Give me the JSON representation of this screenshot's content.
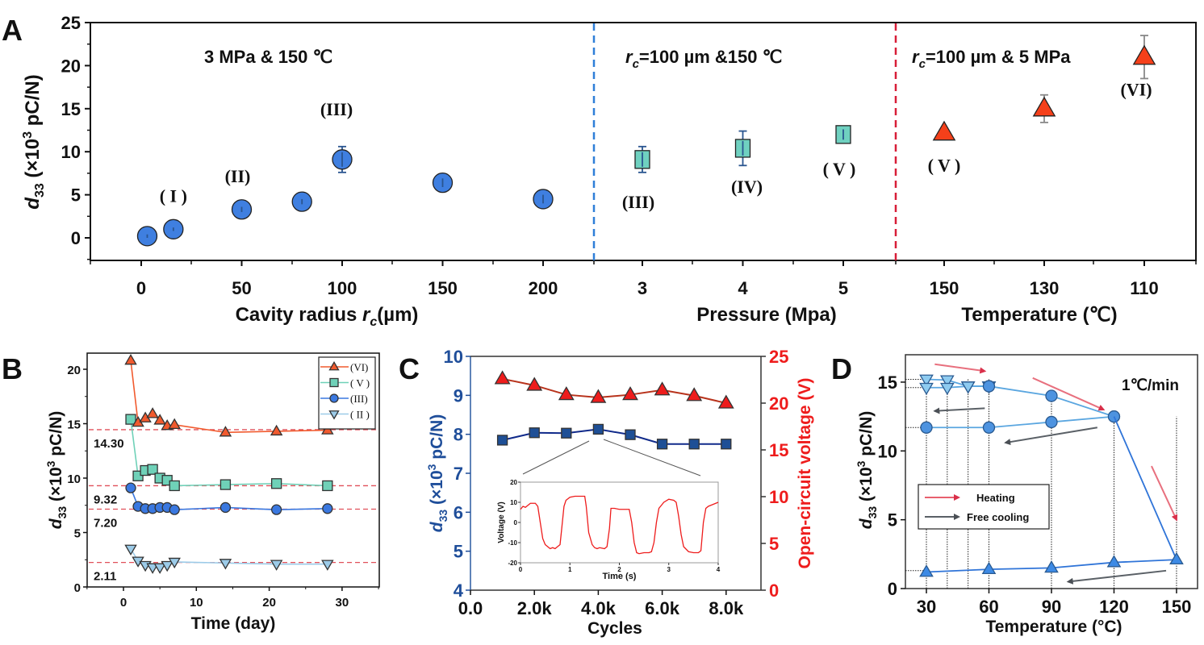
{
  "figure": {
    "panel_labels": [
      "A",
      "B",
      "C",
      "D"
    ]
  },
  "chart_data": [
    {
      "panel": "A",
      "type": "scatter",
      "ylabel_main": "d",
      "ylabel_sub": "33",
      "ylabel_rest": " (×10",
      "ylabel_sup": "3",
      "ylabel_unit": " pC/N)",
      "ylim": [
        -2.5,
        25
      ],
      "yticks": [
        0,
        5,
        10,
        15,
        20,
        25
      ],
      "segments": [
        {
          "name": "cavity",
          "xlabel": "Cavity radius r_c(µm)",
          "xlabel_pre": "Cavity radius ",
          "xlabel_var": "r",
          "xlabel_sub": "c",
          "xlabel_post": "(µm)",
          "condition_pre": "3 MPa & 150 ℃",
          "condition_var": "",
          "condition_sub": "",
          "xticks": [
            "0",
            "50",
            "100",
            "150",
            "200"
          ],
          "xtick_values": [
            0,
            50,
            100,
            150,
            200
          ],
          "marker": "circle",
          "color": "#3f7fe0",
          "points": [
            {
              "x": 3,
              "y": 0.2,
              "err": 0.2,
              "label": ""
            },
            {
              "x": 16,
              "y": 1.0,
              "err": 0.2,
              "label": "( I )"
            },
            {
              "x": 50,
              "y": 3.3,
              "err": 0.3,
              "label": "(II)"
            },
            {
              "x": 80,
              "y": 4.2,
              "err": 0.3,
              "label": ""
            },
            {
              "x": 100,
              "y": 9.1,
              "err": 1.5,
              "label": "(III)"
            },
            {
              "x": 150,
              "y": 6.4,
              "err": 0.5,
              "label": ""
            },
            {
              "x": 200,
              "y": 4.5,
              "err": 0.5,
              "label": ""
            }
          ]
        },
        {
          "name": "pressure",
          "xlabel": "Pressure (Mpa)",
          "condition_var": "r",
          "condition_sub": "c",
          "condition_post": "=100 µm &150 ℃",
          "xticks": [
            "3",
            "4",
            "5"
          ],
          "xtick_values": [
            3,
            4,
            5
          ],
          "marker": "square",
          "color": "#6fd1c0",
          "points": [
            {
              "x": 3,
              "y": 9.1,
              "err": 1.5,
              "label": "(III)"
            },
            {
              "x": 4,
              "y": 10.4,
              "err": 2.0,
              "label": "(IV)"
            },
            {
              "x": 5,
              "y": 12.0,
              "err": 0.6,
              "label": "( V )"
            }
          ]
        },
        {
          "name": "temperature",
          "xlabel": "Temperature (℃)",
          "condition_var": "r",
          "condition_sub": "c",
          "condition_post": "=100 µm & 5 MPa",
          "xticks": [
            "150",
            "130",
            "110"
          ],
          "xtick_values": [
            150,
            130,
            110
          ],
          "marker": "triangle",
          "color": "#f5401a",
          "points": [
            {
              "x": 150,
              "y": 12.2,
              "err": 0.2,
              "label": "( V )"
            },
            {
              "x": 130,
              "y": 15.0,
              "err": 1.6,
              "label": ""
            },
            {
              "x": 110,
              "y": 21.0,
              "err": 2.5,
              "label": "(VI)"
            }
          ]
        }
      ],
      "dividers": [
        {
          "color": "#2f7fd8",
          "style": "dashed"
        },
        {
          "color": "#d81e38",
          "style": "dashed"
        }
      ]
    },
    {
      "panel": "B",
      "type": "line",
      "xlabel": "Time (day)",
      "ylabel": "d33 (×10^3 pC/N)",
      "xlim": [
        -5,
        35
      ],
      "ylim": [
        0,
        21.5
      ],
      "xticks": [
        0,
        10,
        20,
        30
      ],
      "yticks": [
        0,
        5,
        10,
        15,
        20
      ],
      "legend_position": "top-right",
      "series": [
        {
          "name": "(VI)",
          "marker": "triangle",
          "color": "#f15a2e",
          "x": [
            1,
            2,
            3,
            4,
            5,
            6,
            7,
            14,
            21,
            28
          ],
          "y": [
            20.8,
            15.1,
            15.5,
            15.9,
            15.3,
            14.8,
            14.9,
            14.2,
            14.3,
            14.4
          ]
        },
        {
          "name": "( V )",
          "marker": "square",
          "color": "#6fd1b8",
          "x": [
            1,
            2,
            3,
            4,
            5,
            6,
            7,
            14,
            21,
            28
          ],
          "y": [
            15.4,
            10.2,
            10.7,
            10.8,
            10.0,
            9.8,
            9.3,
            9.4,
            9.5,
            9.3
          ]
        },
        {
          "name": "(III)",
          "marker": "circle",
          "color": "#3a78e0",
          "x": [
            1,
            2,
            3,
            4,
            5,
            6,
            7,
            14,
            21,
            28
          ],
          "y": [
            9.1,
            7.4,
            7.2,
            7.2,
            7.3,
            7.3,
            7.1,
            7.3,
            7.1,
            7.2
          ]
        },
        {
          "name": "( II )",
          "marker": "triangle-down",
          "color": "#9ccbe8",
          "x": [
            1,
            2,
            3,
            4,
            5,
            6,
            7,
            14,
            21,
            28
          ],
          "y": [
            3.5,
            2.4,
            2.0,
            1.8,
            1.8,
            2.0,
            2.3,
            2.2,
            2.1,
            2.1
          ]
        }
      ],
      "reference_lines": [
        {
          "value": 14.3,
          "label": "14.30",
          "line_y": 14.45
        },
        {
          "value": 9.32,
          "label": "9.32",
          "line_y": 9.3
        },
        {
          "value": 7.2,
          "label": "7.20",
          "line_y": 7.15
        },
        {
          "value": 2.11,
          "label": "2.11",
          "line_y": 2.25
        }
      ],
      "reference_color": "#e0505a"
    },
    {
      "panel": "C",
      "type": "line",
      "xlabel": "Cycles",
      "ylabel_left": "d33 (×10^3 pC/N)",
      "ylabel_right": "Open-circuit voltage (V)",
      "xlim": [
        0,
        9000
      ],
      "xticks": [
        0,
        2000,
        4000,
        6000,
        8000
      ],
      "xtick_labels": [
        "0.0",
        "2.0k",
        "4.0k",
        "6.0k",
        "8.0k"
      ],
      "ylim_left": [
        4,
        10
      ],
      "yticks_left": [
        4,
        5,
        6,
        7,
        8,
        9,
        10
      ],
      "ylim_right": [
        0,
        25
      ],
      "yticks_right": [
        0,
        5,
        10,
        15,
        20,
        25
      ],
      "left_color": "#1f4e9a",
      "right_color": "#ee1c1c",
      "series": [
        {
          "name": "d33",
          "axis": "left",
          "marker": "square",
          "color": "#1e4f96",
          "line_color": "#102a8a",
          "x": [
            1000,
            2000,
            3000,
            4000,
            5000,
            6000,
            7000,
            8000
          ],
          "y": [
            7.85,
            8.04,
            8.03,
            8.13,
            7.99,
            7.75,
            7.75,
            7.75
          ]
        },
        {
          "name": "Open-circuit voltage",
          "axis": "right",
          "marker": "triangle",
          "color": "#ee1c1c",
          "line_color": "#b8331c",
          "x": [
            1000,
            2000,
            3000,
            4000,
            5000,
            6000,
            7000,
            8000
          ],
          "y": [
            22.6,
            21.9,
            20.9,
            20.6,
            20.9,
            21.4,
            20.8,
            20.0
          ]
        }
      ],
      "inset": {
        "type": "line",
        "xlabel": "Time (s)",
        "ylabel": "Voltage (V)",
        "xlim": [
          0,
          4
        ],
        "ylim": [
          -20,
          20
        ],
        "xticks": [
          0,
          1,
          2,
          3,
          4
        ],
        "yticks": [
          -20,
          -10,
          0,
          10,
          20
        ],
        "color": "#ee1c1c",
        "x": [
          0,
          0.05,
          0.1,
          0.15,
          0.2,
          0.3,
          0.35,
          0.4,
          0.45,
          0.5,
          0.55,
          0.6,
          0.65,
          0.7,
          0.75,
          0.8,
          0.83,
          0.88,
          0.92,
          1.0,
          1.1,
          1.2,
          1.3,
          1.33,
          1.38,
          1.45,
          1.5,
          1.55,
          1.6,
          1.7,
          1.75,
          1.8,
          1.83,
          1.9,
          2.0,
          2.1,
          2.2,
          2.25,
          2.3,
          2.35,
          2.4,
          2.5,
          2.6,
          2.65,
          2.7,
          2.75,
          2.8,
          2.9,
          3.0,
          3.1,
          3.15,
          3.2,
          3.25,
          3.3,
          3.4,
          3.5,
          3.6,
          3.65,
          3.7,
          3.75,
          3.8,
          3.9,
          4.0
        ],
        "y": [
          6.5,
          8,
          7.5,
          8.5,
          9.5,
          9.5,
          8,
          0,
          -8,
          -11,
          -12,
          -13,
          -12.5,
          -13,
          -12,
          -11,
          -4,
          8,
          11,
          12.5,
          13,
          13,
          13,
          8,
          -5,
          -11,
          -12.5,
          -13,
          -12.5,
          -13,
          -12,
          -3,
          7,
          7,
          6.5,
          6.5,
          6.5,
          0,
          -10,
          -15,
          -15.5,
          -15,
          -15,
          -14.5,
          -10,
          0,
          7,
          10,
          11.5,
          11,
          10,
          3,
          -6,
          -12,
          -14.5,
          -15,
          -15,
          -14,
          0,
          7,
          8,
          9,
          10
        ]
      }
    },
    {
      "panel": "D",
      "type": "line",
      "xlabel": "Temperature (°C)",
      "ylabel": "d33 (×10^3 pC/N)",
      "xlim": [
        20,
        153
      ],
      "ylim": [
        0,
        17
      ],
      "xticks": [
        30,
        60,
        90,
        120,
        150
      ],
      "yticks": [
        0,
        5,
        10,
        15
      ],
      "annotation": "1℃/min",
      "legend": [
        {
          "label": "Heating",
          "color": "#e8606e"
        },
        {
          "label": "Free cooling",
          "color": "#5a6066"
        }
      ],
      "legend_position": "center-left",
      "series": [
        {
          "name": "cooling from 60 (top)",
          "marker": "triangle-down",
          "color": "#8ecbf0",
          "line_color": "#5aa6e0",
          "x": [
            30,
            40,
            50,
            60
          ],
          "y": [
            15.2,
            15.15,
            14.7,
            14.7
          ]
        },
        {
          "name": "cooling from 60 (second)",
          "marker": "triangle-down",
          "color": "#8ecbf0",
          "line_color": "#5aa6e0",
          "x": [
            30,
            40,
            50,
            60
          ],
          "y": [
            14.6,
            14.6,
            14.7,
            14.7
          ]
        },
        {
          "name": "heating 60-120",
          "marker": "circle",
          "color": "#4d93e0",
          "line_color": "#5aa6e0",
          "x": [
            60,
            90,
            120
          ],
          "y": [
            14.7,
            14.0,
            12.5
          ]
        },
        {
          "name": "cooling from 120",
          "marker": "circle",
          "color": "#4d93e0",
          "line_color": "#5aa6e0",
          "x": [
            30,
            60,
            90,
            120
          ],
          "y": [
            11.7,
            11.7,
            12.1,
            12.5
          ]
        },
        {
          "name": "heating 120-150",
          "marker": "none",
          "color": "#2f74d8",
          "line_color": "#2f74d8",
          "x": [
            120,
            150
          ],
          "y": [
            12.5,
            2.1
          ]
        },
        {
          "name": "cooling from 150",
          "marker": "triangle",
          "color": "#3d8ae5",
          "line_color": "#2f74d8",
          "x": [
            30,
            60,
            90,
            120,
            150
          ],
          "y": [
            1.2,
            1.4,
            1.5,
            1.9,
            2.1
          ]
        }
      ],
      "guide_levels": [
        15.2,
        14.6,
        11.7,
        1.3
      ],
      "guide_temps": [
        30,
        40,
        50,
        60,
        90,
        120,
        150
      ],
      "arrows": [
        {
          "kind": "heating",
          "from": [
            34,
            16.3
          ],
          "to": [
            58,
            15.8
          ]
        },
        {
          "kind": "heating",
          "from": [
            81,
            15.3
          ],
          "to": [
            115,
            13.0
          ]
        },
        {
          "kind": "heating",
          "from": [
            138,
            8.9
          ],
          "to": [
            150,
            5.0
          ]
        },
        {
          "kind": "cooling",
          "from": [
            58,
            13.1
          ],
          "to": [
            34,
            12.9
          ]
        },
        {
          "kind": "cooling",
          "from": [
            112,
            11.7
          ],
          "to": [
            68,
            10.6
          ]
        },
        {
          "kind": "cooling",
          "from": [
            145,
            1.3
          ],
          "to": [
            98,
            0.5
          ]
        }
      ]
    }
  ]
}
